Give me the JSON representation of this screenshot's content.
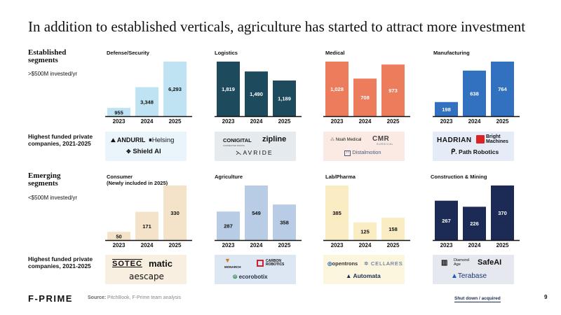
{
  "title": "In addition to established verticals, agriculture has started to attract more investment",
  "segments": {
    "established": {
      "label": "Established segments",
      "sub": ">$500M invested/yr"
    },
    "emerging": {
      "label": "Emerging segments",
      "sub": "<$500M invested/yr"
    },
    "funded_label": "Highest funded private companies, 2021-2025"
  },
  "colors": {
    "defense": "#bfe3f3",
    "logistics": "#1d4a5c",
    "medical": "#ec7c5c",
    "manufacturing": "#3270c0",
    "consumer": "#f5e3c9",
    "agriculture": "#b9cce6",
    "labpharma": "#fbedc3",
    "construction": "#1c2b55"
  },
  "chart_data": [
    {
      "type": "bar",
      "id": "defense",
      "title": "Defense/Security",
      "categories": [
        "2023",
        "2024",
        "2025"
      ],
      "values": [
        955,
        3348,
        6293
      ],
      "labels": [
        "955",
        "3,348",
        "6,293"
      ]
    },
    {
      "type": "bar",
      "id": "logistics",
      "title": "Logistics",
      "categories": [
        "2023",
        "2024",
        "2025"
      ],
      "values": [
        1819,
        1490,
        1189
      ],
      "labels": [
        "1,819",
        "1,490",
        "1,189"
      ]
    },
    {
      "type": "bar",
      "id": "medical",
      "title": "Medical",
      "categories": [
        "2023",
        "2024",
        "2025"
      ],
      "values": [
        1028,
        708,
        973
      ],
      "labels": [
        "1,028",
        "708",
        "973"
      ]
    },
    {
      "type": "bar",
      "id": "manufacturing",
      "title": "Manufacturing",
      "categories": [
        "2023",
        "2024",
        "2025"
      ],
      "values": [
        198,
        638,
        764
      ],
      "labels": [
        "198",
        "638",
        "764"
      ]
    },
    {
      "type": "bar",
      "id": "consumer",
      "title": "Consumer",
      "subtitle": "(Newly included in 2025)",
      "categories": [
        "2023",
        "2024",
        "2025"
      ],
      "values": [
        50,
        171,
        330
      ],
      "labels": [
        "50",
        "171",
        "330"
      ]
    },
    {
      "type": "bar",
      "id": "agriculture",
      "title": "Agriculture",
      "categories": [
        "2023",
        "2024",
        "2025"
      ],
      "values": [
        287,
        549,
        358
      ],
      "labels": [
        "287",
        "549",
        "358"
      ]
    },
    {
      "type": "bar",
      "id": "labpharma",
      "title": "Lab/Pharma",
      "categories": [
        "2023",
        "2024",
        "2025"
      ],
      "values": [
        385,
        125,
        158
      ],
      "labels": [
        "385",
        "125",
        "158"
      ]
    },
    {
      "type": "bar",
      "id": "construction",
      "title": "Construction & Mining",
      "categories": [
        "2023",
        "2024",
        "2025"
      ],
      "values": [
        267,
        226,
        370
      ],
      "labels": [
        "267",
        "226",
        "370"
      ]
    }
  ],
  "companies": {
    "defense": [
      "ANDURIL",
      "Helsing",
      "Shield AI"
    ],
    "logistics": [
      "CONIGITAL",
      "CONNECTED DIGITAL",
      "zipline",
      "AVRIDE"
    ],
    "medical": [
      "Noah Medical",
      "CMR",
      "SURGICAL",
      "Distalmotion"
    ],
    "manufacturing": [
      "HADRIAN",
      "Bright Machines",
      "Path Robotics"
    ],
    "consumer": [
      "SOTEC",
      "matic",
      "aescape"
    ],
    "agriculture": [
      "MONARCH",
      "CARBON ROBOTICS",
      "ecorobotix"
    ],
    "labpharma": [
      "opentrons",
      "CELLARES",
      "Automata"
    ],
    "construction": [
      "Diamond Age",
      "SafeAI",
      "Terabase"
    ]
  },
  "footer": {
    "logo": "F-PRIME",
    "source_label": "Source:",
    "source_text": "PitchBook, F-Prime team analysis",
    "shutdown": "Shut down / acquired",
    "page": "9"
  }
}
